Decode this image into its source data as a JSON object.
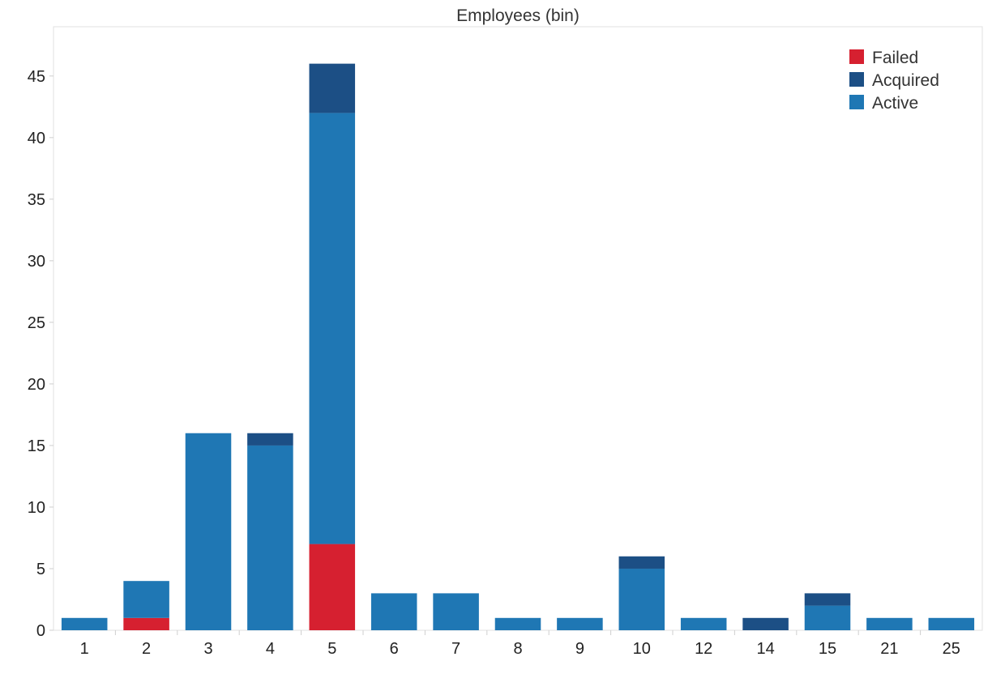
{
  "chart_data": {
    "type": "bar",
    "stacked": true,
    "title": "Employees (bin)",
    "xlabel": "",
    "ylabel": "",
    "categories": [
      "1",
      "2",
      "3",
      "4",
      "5",
      "6",
      "7",
      "8",
      "9",
      "10",
      "12",
      "14",
      "15",
      "21",
      "25"
    ],
    "series": [
      {
        "name": "Failed",
        "color": "#d62030",
        "values": [
          0,
          1,
          0,
          0,
          7,
          0,
          0,
          0,
          0,
          0,
          0,
          0,
          0,
          0,
          0
        ]
      },
      {
        "name": "Active",
        "color": "#1f77b4",
        "values": [
          1,
          3,
          16,
          15,
          35,
          3,
          3,
          1,
          1,
          5,
          1,
          0,
          2,
          1,
          1
        ]
      },
      {
        "name": "Acquired",
        "color": "#1c4f85",
        "values": [
          0,
          0,
          0,
          1,
          4,
          0,
          0,
          0,
          0,
          1,
          0,
          1,
          1,
          0,
          0
        ]
      }
    ],
    "legend_order": [
      "Failed",
      "Acquired",
      "Active"
    ],
    "ylim": [
      0,
      49
    ],
    "yticks": [
      0,
      5,
      10,
      15,
      20,
      25,
      30,
      35,
      40,
      45
    ],
    "grid": false,
    "legend_position": "top-right"
  }
}
